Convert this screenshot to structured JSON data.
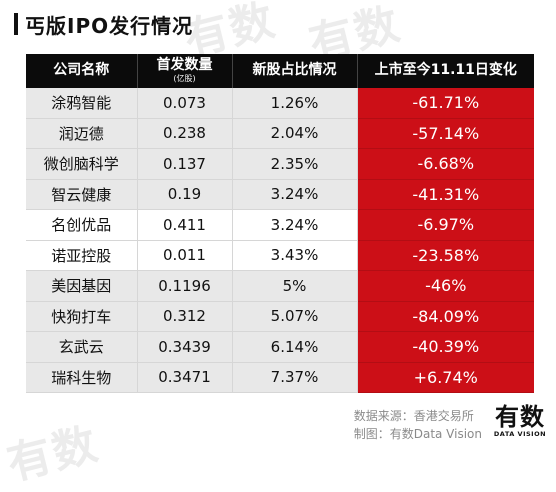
{
  "title": "丐版IPO发行情况",
  "header": {
    "company": "公司名称",
    "shares": "首发数量",
    "shares_unit": "(亿股)",
    "ratio": "新股占比情况",
    "change": "上市至今11.11日变化"
  },
  "rows": [
    {
      "company": "涂鸦智能",
      "shares": "0.073",
      "ratio": "1.26%",
      "change": "-61.71%"
    },
    {
      "company": "润迈德",
      "shares": "0.238",
      "ratio": "2.04%",
      "change": "-57.14%"
    },
    {
      "company": "微创脑科学",
      "shares": "0.137",
      "ratio": "2.35%",
      "change": "-6.68%"
    },
    {
      "company": "智云健康",
      "shares": "0.19",
      "ratio": "3.24%",
      "change": "-41.31%"
    },
    {
      "company": "名创优品",
      "shares": "0.411",
      "ratio": "3.24%",
      "change": "-6.97%"
    },
    {
      "company": "诺亚控股",
      "shares": "0.011",
      "ratio": "3.43%",
      "change": "-23.58%"
    },
    {
      "company": "美因基因",
      "shares": "0.1196",
      "ratio": "5%",
      "change": "-46%"
    },
    {
      "company": "快狗打车",
      "shares": "0.312",
      "ratio": "5.07%",
      "change": "-84.09%"
    },
    {
      "company": "玄武云",
      "shares": "0.3439",
      "ratio": "6.14%",
      "change": "-40.39%"
    },
    {
      "company": "瑞科生物",
      "shares": "0.3471",
      "ratio": "7.37%",
      "change": "+6.74%"
    }
  ],
  "footer": {
    "source": "数据来源：香港交易所",
    "maker": "制图：有数Data Vision"
  },
  "brand": {
    "cn": "有数",
    "en": "DATA VISION"
  },
  "watermark": "有数",
  "colors": {
    "header_bg": "#0b0b0b",
    "change_bg": "#cc0f17",
    "row_grey": "#e8e8e8"
  }
}
